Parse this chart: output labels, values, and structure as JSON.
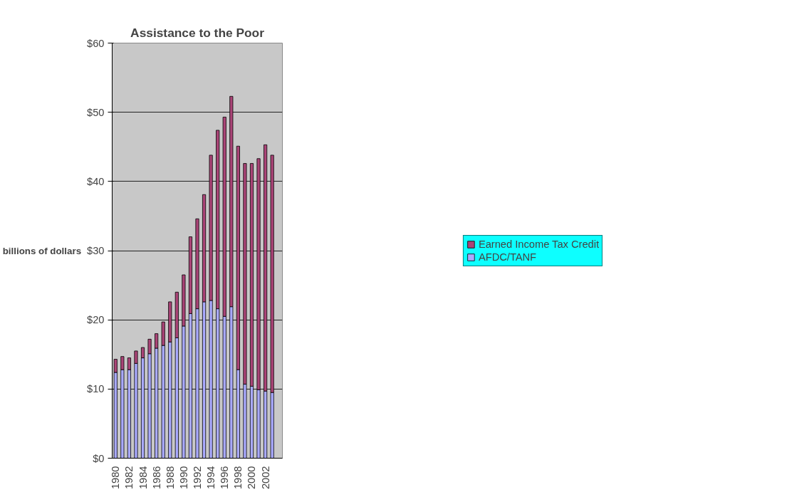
{
  "chart_data": {
    "type": "bar",
    "stacked": true,
    "title": "Assistance to the Poor",
    "ylabel": "billions of dollars",
    "categories": [
      "1980",
      null,
      "1982",
      null,
      "1984",
      null,
      "1986",
      null,
      "1988",
      null,
      "1990",
      null,
      "1992",
      null,
      "1994",
      null,
      "1996",
      null,
      "1998",
      null,
      "2000",
      null,
      "2002",
      null
    ],
    "series": [
      {
        "name": "AFDC/TANF",
        "color": "#aaaaff",
        "values": [
          12.4,
          12.8,
          12.8,
          13.7,
          14.5,
          15.1,
          15.9,
          16.3,
          16.8,
          17.4,
          19.1,
          20.9,
          21.6,
          22.6,
          22.8,
          21.6,
          20.5,
          21.9,
          12.8,
          10.7,
          10.4,
          9.9,
          9.7,
          9.5
        ]
      },
      {
        "name": "Earned Income Tax Credit",
        "color": "#aa4477",
        "values": [
          1.9,
          1.9,
          1.7,
          1.8,
          1.5,
          2.1,
          2.1,
          3.4,
          5.8,
          6.6,
          7.4,
          11.1,
          13.0,
          15.5,
          21.0,
          25.8,
          28.8,
          30.4,
          32.3,
          31.9,
          32.2,
          33.4,
          35.6,
          34.3
        ]
      }
    ],
    "ylim": [
      0,
      60
    ],
    "yticks": [
      {
        "value": 0,
        "label": "$0"
      },
      {
        "value": 10,
        "label": "$10"
      },
      {
        "value": 20,
        "label": "$20"
      },
      {
        "value": 30,
        "label": "$30"
      },
      {
        "value": 40,
        "label": "$40"
      },
      {
        "value": 50,
        "label": "$50"
      },
      {
        "value": 60,
        "label": "$60"
      }
    ],
    "grid": "y",
    "legend": "right"
  }
}
